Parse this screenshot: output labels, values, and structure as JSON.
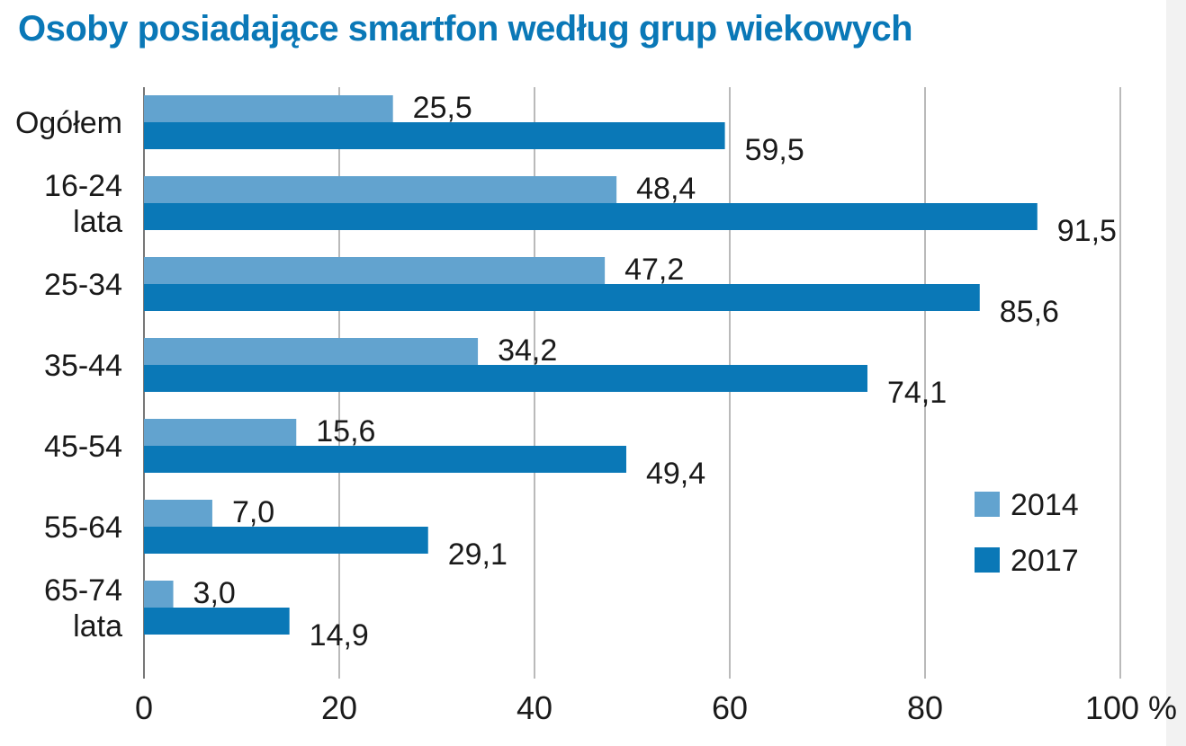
{
  "chart_data": {
    "type": "bar",
    "orientation": "horizontal",
    "title": "Osoby posiadające smartfon według grup wiekowych",
    "categories": [
      "Ogółem",
      "16-24 lata",
      "25-34",
      "35-44",
      "45-54",
      "55-64",
      "65-74 lata"
    ],
    "category_lines": [
      [
        "Ogółem"
      ],
      [
        "16-24",
        "lata"
      ],
      [
        "25-34"
      ],
      [
        "35-44"
      ],
      [
        "45-54"
      ],
      [
        "55-64"
      ],
      [
        "65-74",
        "lata"
      ]
    ],
    "series": [
      {
        "name": "2014",
        "color": "#62a3cf",
        "values": [
          25.5,
          48.4,
          47.2,
          34.2,
          15.6,
          7.0,
          3.0
        ],
        "labels": [
          "25,5",
          "48,4",
          "47,2",
          "34,2",
          "15,6",
          "7,0",
          "3,0"
        ]
      },
      {
        "name": "2017",
        "color": "#0a78b7",
        "values": [
          59.5,
          91.5,
          85.6,
          74.1,
          49.4,
          29.1,
          14.9
        ],
        "labels": [
          "59,5",
          "91,5",
          "85,6",
          "74,1",
          "49,4",
          "29,1",
          "14,9"
        ]
      }
    ],
    "x_ticks": [
      "0",
      "20",
      "40",
      "60",
      "80",
      "100 %"
    ],
    "xlim": [
      0,
      100
    ],
    "grid": true,
    "legend_position": "right"
  }
}
